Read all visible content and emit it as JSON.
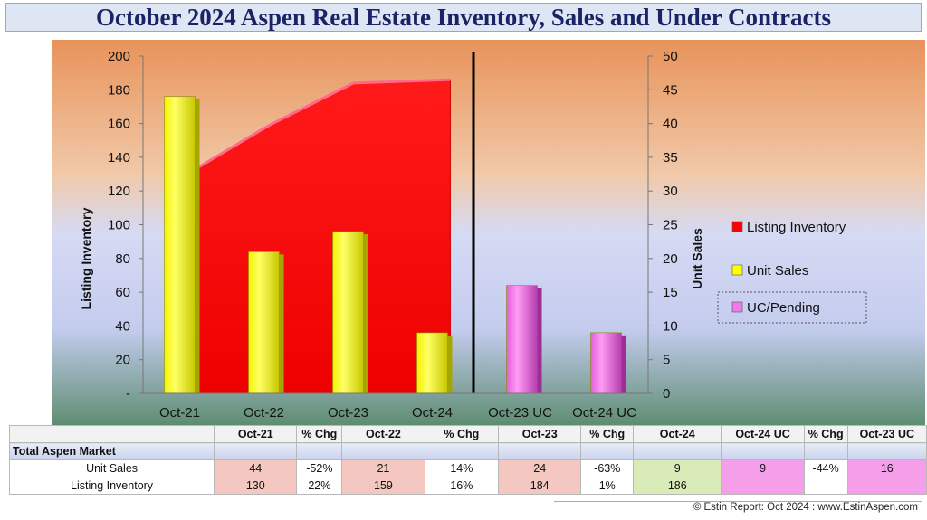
{
  "title": "October 2024 Aspen Real Estate Inventory, Sales and Under Contracts",
  "chart_data": {
    "type": "bar",
    "categories": [
      "Oct-21",
      "Oct-22",
      "Oct-23",
      "Oct-24",
      "Oct-23 UC",
      "Oct-24 UC"
    ],
    "ylabel_left": "Listing Inventory",
    "ylabel_right": "Unit Sales",
    "ylim_left": [
      0,
      200
    ],
    "ylim_right": [
      0,
      50
    ],
    "left_ticks": [
      "200",
      "180",
      "160",
      "140",
      "120",
      "100",
      "80",
      "60",
      "40",
      "20",
      "-"
    ],
    "right_ticks": [
      "50",
      "45",
      "40",
      "35",
      "30",
      "25",
      "20",
      "15",
      "10",
      "5",
      "0"
    ],
    "series": [
      {
        "name": "Listing Inventory",
        "kind": "area",
        "axis": "left",
        "color": "#ff0000",
        "values": [
          130,
          159,
          184,
          186,
          null,
          null
        ]
      },
      {
        "name": "Unit Sales",
        "kind": "bar",
        "axis": "right",
        "color": "#ffff00",
        "values": [
          44,
          21,
          24,
          9,
          null,
          null
        ]
      },
      {
        "name": "UC/Pending",
        "kind": "bar",
        "axis": "right",
        "color": "#f07ae8",
        "values": [
          null,
          null,
          null,
          null,
          16,
          9
        ]
      }
    ],
    "legend_position": "right"
  },
  "table": {
    "headers": [
      "",
      "Oct-21",
      "% Chg",
      "Oct-22",
      "% Chg",
      "Oct-23",
      "% Chg",
      "Oct-24",
      "Oct-24 UC",
      "% Chg",
      "Oct-23 UC"
    ],
    "section_label": "Total Aspen Market",
    "rows": [
      {
        "label": "Unit Sales",
        "cells": [
          "44",
          "-52%",
          "21",
          "14%",
          "24",
          "-63%",
          "9",
          "9",
          "-44%",
          "16"
        ]
      },
      {
        "label": "Listing Inventory",
        "cells": [
          "130",
          "22%",
          "159",
          "16%",
          "184",
          "1%",
          "186",
          "",
          "",
          ""
        ]
      }
    ]
  },
  "copyright": "© Estin Report: Oct 2024 : www.EstinAspen.com"
}
